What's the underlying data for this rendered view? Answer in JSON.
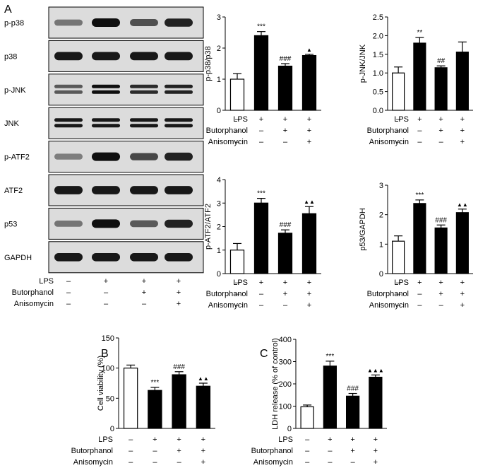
{
  "figure": {
    "panel_labels": [
      "A",
      "B",
      "C"
    ],
    "treatments": [
      "LPS",
      "Butorphanol",
      "Anisomycin"
    ],
    "conditions": [
      [
        "–",
        "+",
        "+",
        "+"
      ],
      [
        "–",
        "–",
        "+",
        "+"
      ],
      [
        "–",
        "–",
        "–",
        "+"
      ]
    ]
  },
  "western_blot": {
    "rows": [
      {
        "label": "p-p38",
        "intensity": [
          0.45,
          1.0,
          0.65,
          0.9
        ]
      },
      {
        "label": "p38",
        "intensity": [
          0.95,
          0.95,
          0.95,
          0.95
        ]
      },
      {
        "label": "p-JNK",
        "intensity": [
          0.6,
          1.0,
          0.85,
          0.9
        ],
        "double": true
      },
      {
        "label": "JNK",
        "intensity": [
          0.95,
          0.95,
          0.95,
          0.95
        ],
        "double": true
      },
      {
        "label": "p-ATF2",
        "intensity": [
          0.4,
          1.0,
          0.7,
          0.9
        ]
      },
      {
        "label": "ATF2",
        "intensity": [
          0.95,
          0.95,
          0.95,
          0.95
        ]
      },
      {
        "label": "p53",
        "intensity": [
          0.45,
          1.0,
          0.6,
          0.9
        ]
      },
      {
        "label": "GAPDH",
        "intensity": [
          0.95,
          0.95,
          0.95,
          0.95
        ]
      }
    ]
  },
  "chart_data": [
    {
      "type": "bar",
      "panel": "A",
      "categories": [
        "1",
        "2",
        "3",
        "4"
      ],
      "values": [
        1.0,
        2.4,
        1.42,
        1.76
      ],
      "errors": [
        0.18,
        0.13,
        0.08,
        0.04
      ],
      "annotations": [
        "",
        "***",
        "###",
        "▲"
      ],
      "ylabel": "p-p38/p38",
      "ylim": [
        0,
        3
      ],
      "yticks": [
        "0",
        "1",
        "2",
        "3"
      ],
      "bar_colors": [
        "#ffffff",
        "#000000",
        "#000000",
        "#000000"
      ]
    },
    {
      "type": "bar",
      "panel": "A",
      "categories": [
        "1",
        "2",
        "3",
        "4"
      ],
      "values": [
        1.0,
        1.8,
        1.14,
        1.56
      ],
      "errors": [
        0.16,
        0.15,
        0.05,
        0.27
      ],
      "annotations": [
        "",
        "**",
        "##",
        ""
      ],
      "ylabel": "p-JNK/JNK",
      "ylim": [
        0,
        2.5
      ],
      "yticks": [
        "0.0",
        "0.5",
        "1.0",
        "1.5",
        "2.0",
        "2.5"
      ],
      "bar_colors": [
        "#ffffff",
        "#000000",
        "#000000",
        "#000000"
      ]
    },
    {
      "type": "bar",
      "panel": "A",
      "categories": [
        "1",
        "2",
        "3",
        "4"
      ],
      "values": [
        1.0,
        3.0,
        1.72,
        2.55
      ],
      "errors": [
        0.28,
        0.2,
        0.14,
        0.3
      ],
      "annotations": [
        "",
        "***",
        "###",
        "▲▲"
      ],
      "ylabel": "p-ATF2/ATF2",
      "ylim": [
        0,
        4
      ],
      "yticks": [
        "0",
        "1",
        "2",
        "3",
        "4"
      ],
      "bar_colors": [
        "#ffffff",
        "#000000",
        "#000000",
        "#000000"
      ]
    },
    {
      "type": "bar",
      "panel": "A",
      "categories": [
        "1",
        "2",
        "3",
        "4"
      ],
      "values": [
        1.1,
        2.38,
        1.55,
        2.07
      ],
      "errors": [
        0.18,
        0.12,
        0.1,
        0.12
      ],
      "annotations": [
        "",
        "***",
        "###",
        "▲▲"
      ],
      "ylabel": "p53/GAPDH",
      "ylim": [
        0,
        3
      ],
      "yticks": [
        "0",
        "1",
        "2",
        "3"
      ],
      "bar_colors": [
        "#ffffff",
        "#000000",
        "#000000",
        "#000000"
      ]
    },
    {
      "type": "bar",
      "panel": "B",
      "categories": [
        "1",
        "2",
        "3",
        "4"
      ],
      "values": [
        100,
        63,
        89,
        70
      ],
      "errors": [
        5,
        5,
        5,
        5
      ],
      "annotations": [
        "",
        "***",
        "###",
        "▲▲"
      ],
      "ylabel": "Cell viability (%)",
      "ylim": [
        0,
        150
      ],
      "yticks": [
        "0",
        "50",
        "100",
        "150"
      ],
      "bar_colors": [
        "#ffffff",
        "#000000",
        "#000000",
        "#000000"
      ]
    },
    {
      "type": "bar",
      "panel": "C",
      "categories": [
        "1",
        "2",
        "3",
        "4"
      ],
      "values": [
        97,
        280,
        145,
        230
      ],
      "errors": [
        8,
        22,
        12,
        10
      ],
      "annotations": [
        "",
        "***",
        "###",
        "▲▲▲"
      ],
      "ylabel": "LDH release (% of control)",
      "ylim": [
        0,
        400
      ],
      "yticks": [
        "0",
        "100",
        "200",
        "300",
        "400"
      ],
      "bar_colors": [
        "#ffffff",
        "#000000",
        "#000000",
        "#000000"
      ]
    }
  ]
}
